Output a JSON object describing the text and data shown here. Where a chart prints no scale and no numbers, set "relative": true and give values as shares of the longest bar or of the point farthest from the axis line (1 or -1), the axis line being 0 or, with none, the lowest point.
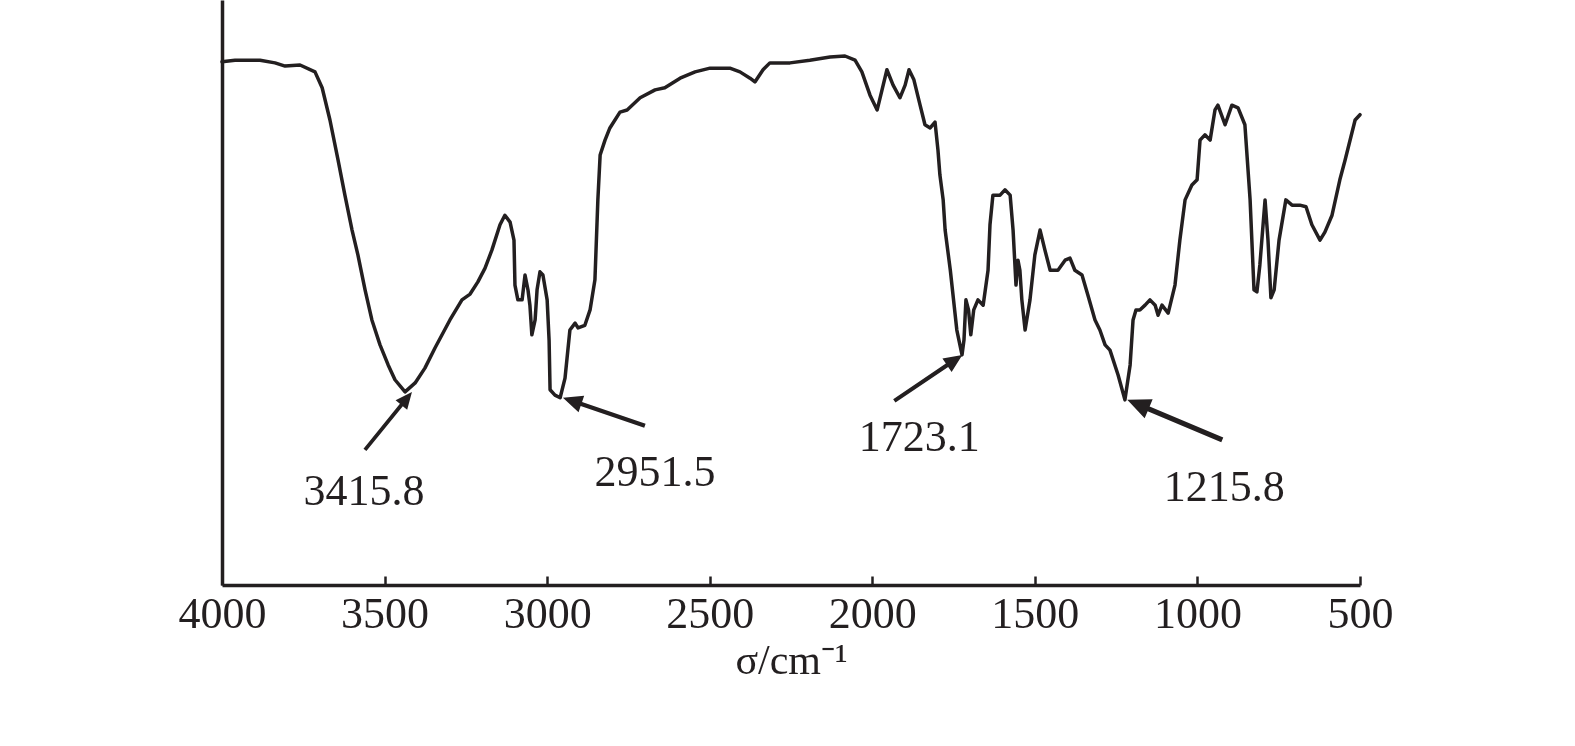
{
  "chart_data": {
    "type": "line",
    "xlabel": "σ/cm⁻¹",
    "relative": true,
    "color": "#231f20",
    "grid": false,
    "marker": "none",
    "line_style": "solid",
    "xlim": [
      4000,
      500
    ],
    "xticks": [
      4000,
      3500,
      3000,
      2500,
      2000,
      1500,
      1000,
      500
    ],
    "x": [
      4000,
      3960,
      3883,
      3837,
      3806,
      3760,
      3714,
      3692,
      3668,
      3643,
      3622,
      3600,
      3582,
      3560,
      3539,
      3514,
      3489,
      3468,
      3437,
      3406,
      3376,
      3345,
      3299,
      3262,
      3237,
      3213,
      3191,
      3170,
      3145,
      3130,
      3114,
      3102,
      3099,
      3090,
      3077,
      3068,
      3059,
      3053,
      3047,
      3037,
      3031,
      3022,
      3013,
      3000,
      2994,
      2991,
      2976,
      2960,
      2945,
      2930,
      2914,
      2905,
      2884,
      2868,
      2853,
      2844,
      2837,
      2822,
      2807,
      2776,
      2754,
      2714,
      2668,
      2638,
      2591,
      2545,
      2499,
      2438,
      2407,
      2376,
      2361,
      2336,
      2315,
      2253,
      2192,
      2130,
      2084,
      2053,
      2032,
      2007,
      1985,
      1970,
      1955,
      1936,
      1915,
      1899,
      1887,
      1872,
      1853,
      1838,
      1822,
      1807,
      1798,
      1792,
      1782,
      1776,
      1760,
      1740,
      1724,
      1718,
      1712,
      1704,
      1697,
      1688,
      1675,
      1659,
      1644,
      1638,
      1629,
      1607,
      1592,
      1576,
      1567,
      1558,
      1552,
      1546,
      1540,
      1530,
      1515,
      1500,
      1484,
      1469,
      1453,
      1429,
      1407,
      1392,
      1377,
      1355,
      1337,
      1315,
      1300,
      1284,
      1269,
      1244,
      1223,
      1207,
      1198,
      1189,
      1177,
      1161,
      1146,
      1130,
      1121,
      1109,
      1090,
      1069,
      1054,
      1038,
      1017,
      1001,
      992,
      977,
      961,
      946,
      937,
      915,
      894,
      875,
      854,
      838,
      826,
      817,
      808,
      792,
      783,
      774,
      764,
      749,
      728,
      709,
      685,
      666,
      648,
      623,
      608,
      586,
      562,
      546,
      515,
      500
    ],
    "values": [
      0.989,
      0.992,
      0.992,
      0.987,
      0.981,
      0.983,
      0.97,
      0.94,
      0.879,
      0.803,
      0.737,
      0.671,
      0.624,
      0.558,
      0.501,
      0.454,
      0.416,
      0.388,
      0.365,
      0.382,
      0.41,
      0.448,
      0.501,
      0.539,
      0.55,
      0.573,
      0.599,
      0.633,
      0.681,
      0.699,
      0.686,
      0.652,
      0.567,
      0.539,
      0.539,
      0.586,
      0.558,
      0.529,
      0.473,
      0.501,
      0.558,
      0.592,
      0.586,
      0.539,
      0.463,
      0.369,
      0.359,
      0.354,
      0.391,
      0.482,
      0.495,
      0.486,
      0.491,
      0.52,
      0.577,
      0.728,
      0.813,
      0.841,
      0.864,
      0.894,
      0.898,
      0.921,
      0.936,
      0.94,
      0.958,
      0.97,
      0.977,
      0.977,
      0.97,
      0.958,
      0.951,
      0.974,
      0.987,
      0.987,
      0.992,
      0.998,
      1,
      0.992,
      0.97,
      0.926,
      0.898,
      0.936,
      0.974,
      0.945,
      0.921,
      0.945,
      0.974,
      0.955,
      0.907,
      0.87,
      0.864,
      0.875,
      0.822,
      0.775,
      0.728,
      0.671,
      0.595,
      0.482,
      0.435,
      0.463,
      0.539,
      0.52,
      0.473,
      0.52,
      0.539,
      0.529,
      0.595,
      0.681,
      0.737,
      0.737,
      0.747,
      0.737,
      0.671,
      0.567,
      0.614,
      0.595,
      0.539,
      0.482,
      0.539,
      0.624,
      0.671,
      0.633,
      0.595,
      0.595,
      0.614,
      0.618,
      0.595,
      0.586,
      0.548,
      0.501,
      0.482,
      0.454,
      0.444,
      0.397,
      0.35,
      0.416,
      0.501,
      0.52,
      0.52,
      0.529,
      0.539,
      0.529,
      0.51,
      0.529,
      0.514,
      0.567,
      0.652,
      0.728,
      0.756,
      0.766,
      0.841,
      0.851,
      0.841,
      0.898,
      0.907,
      0.87,
      0.907,
      0.902,
      0.87,
      0.728,
      0.558,
      0.554,
      0.605,
      0.728,
      0.652,
      0.543,
      0.558,
      0.652,
      0.728,
      0.718,
      0.718,
      0.715,
      0.681,
      0.652,
      0.667,
      0.699,
      0.766,
      0.803,
      0.879,
      0.889
    ],
    "annotations": [
      {
        "text": "3415.8",
        "x": 3415.8,
        "y": 0.365
      },
      {
        "text": "2951.5",
        "x": 2951.5,
        "y": 0.354
      },
      {
        "text": "1723.1",
        "x": 1723.1,
        "y": 0.435
      },
      {
        "text": "1215.8",
        "x": 1215.8,
        "y": 0.35
      }
    ]
  }
}
